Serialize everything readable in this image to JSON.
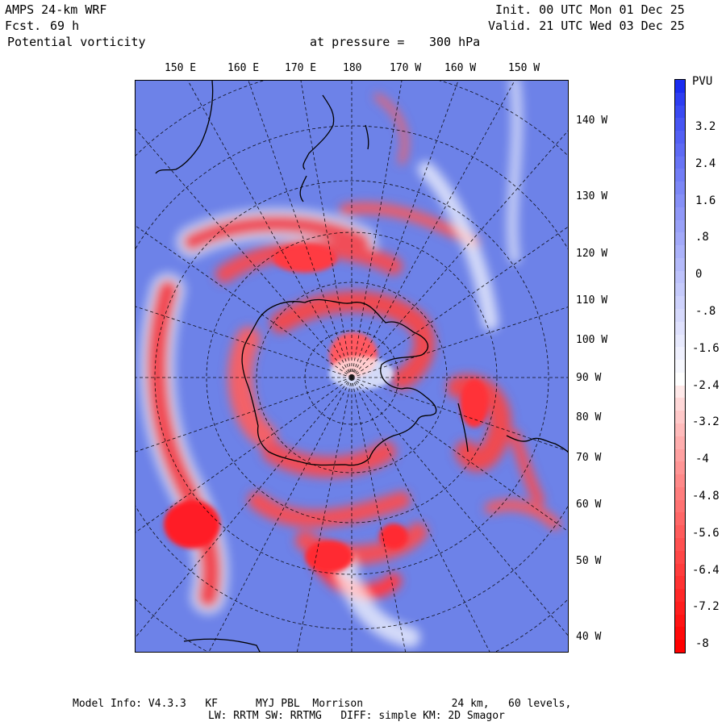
{
  "header": {
    "model": "AMPS 24-km WRF",
    "fcst_label": "Fcst.",
    "fcst_value": "69 h",
    "field": "Potential vorticity",
    "pressure_label": "at pressure =",
    "pressure_value": "300 hPa",
    "init": "Init. 00 UTC Mon 01 Dec 25",
    "valid": "Valid. 21 UTC Wed 03 Dec 25"
  },
  "top_ticks": [
    "150 E",
    "160 E",
    "170 E",
    "180",
    "170 W",
    "160 W",
    "150 W"
  ],
  "right_ticks": [
    "140 W",
    "130 W",
    "120 W",
    "110 W",
    "100 W",
    "90 W",
    "80 W",
    "70 W",
    "60 W",
    "50 W",
    "40 W"
  ],
  "colorbar": {
    "unit": "PVU",
    "labels": [
      "3.2",
      "2.4",
      "1.6",
      ".8",
      "0",
      "-.8",
      "-1.6",
      "-2.4",
      "-3.2",
      "-4",
      "-4.8",
      "-5.6",
      "-6.4",
      "-7.2",
      "-8"
    ],
    "range": [
      -8,
      4
    ],
    "colors": {
      "high": "#1a2cf0",
      "mid": "#ffffff",
      "low": "#ff0000"
    }
  },
  "footer": {
    "line1": "Model Info: V4.3.3   KF      MYJ PBL  Morrison              24 km,   60 levels,",
    "line2": "LW: RRTM SW: RRTMG   DIFF: simple KM: 2D Smagor"
  }
}
